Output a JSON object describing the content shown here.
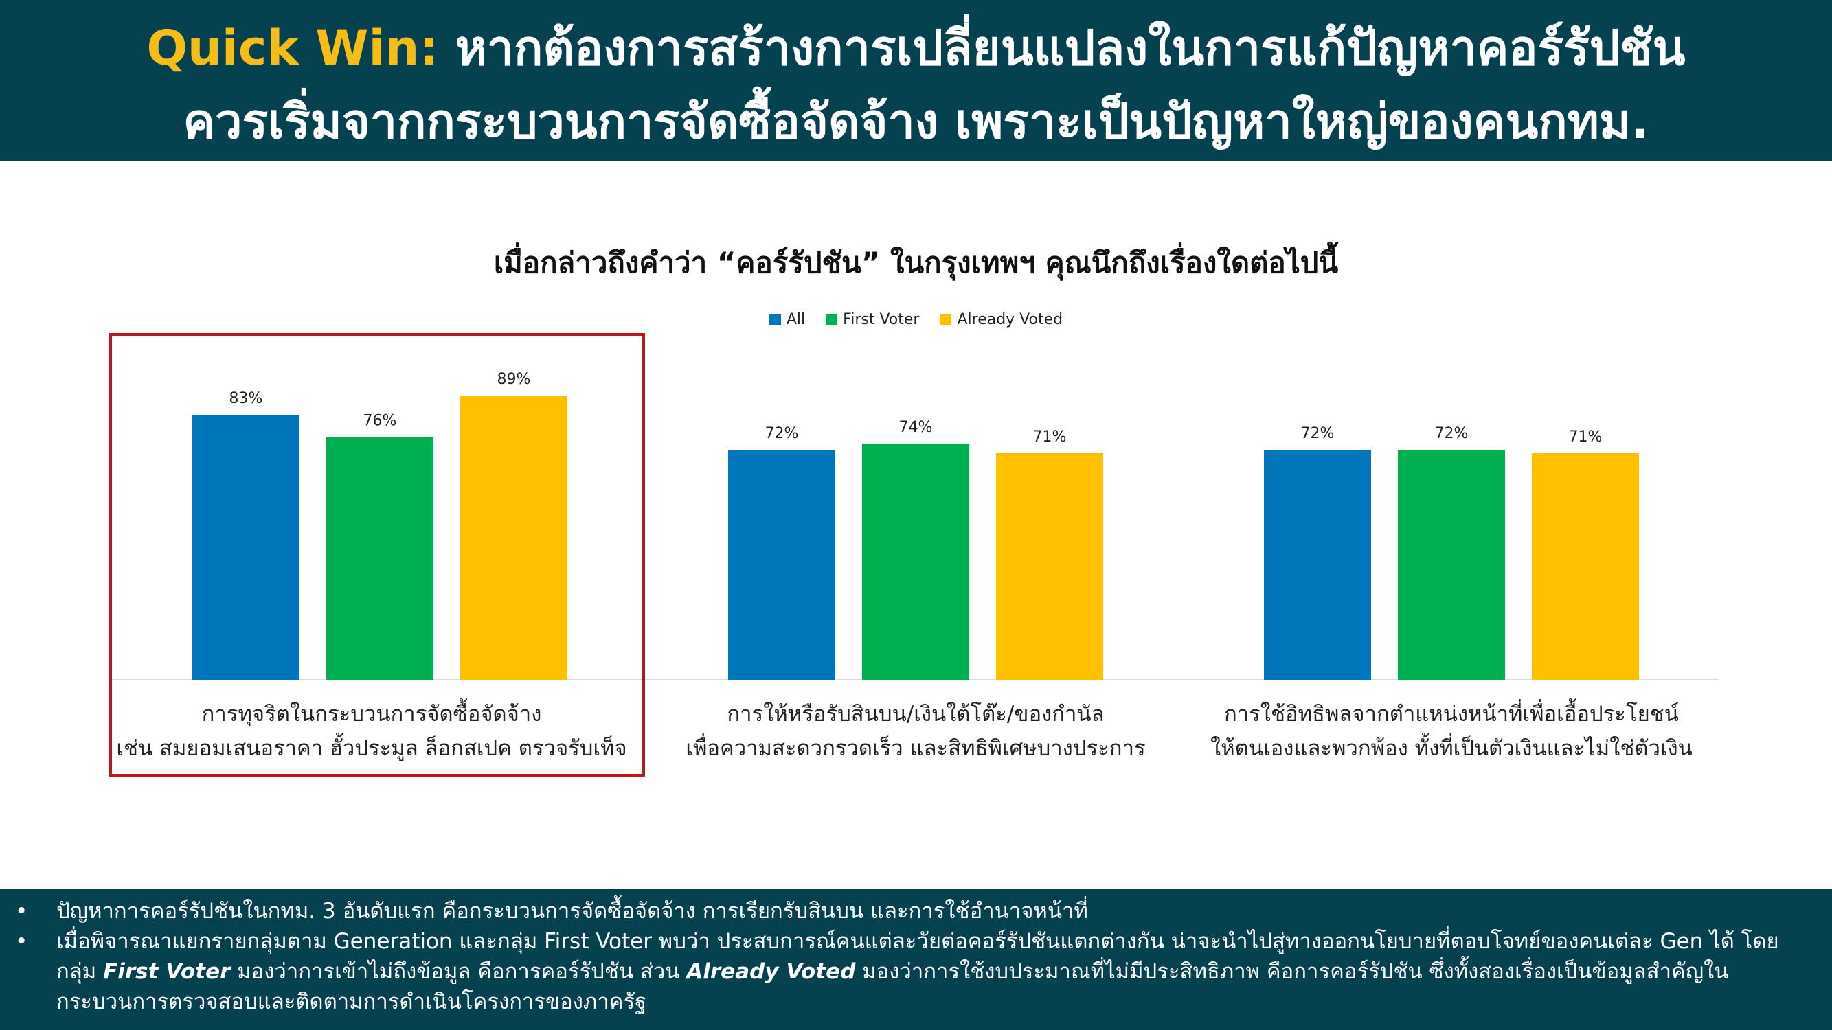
{
  "header": {
    "quickwin_label": "Quick Win:",
    "line1": "หากต้องการสร้างการเปลี่ยนแปลงในการแก้ปัญหาคอร์รัปชัน",
    "line2": "ควรเริ่มจากกระบวนการจัดซื้อจัดจ้าง เพราะเป็นปัญหาใหญ่ของคนกทม."
  },
  "chart_data": {
    "type": "bar",
    "title": "เมื่อกล่าวถึงคำว่า “คอร์รัปชัน” ในกรุงเทพฯ คุณนึกถึงเรื่องใดต่อไปนี้",
    "categories": [
      [
        "การทุจริตในกระบวนการจัดซื้อจัดจ้าง",
        "เช่น สมยอมเสนอราคา ฮั้วประมูล ล็อกสเปค ตรวจรับเท็จ"
      ],
      [
        "การให้หรือรับสินบน/เงินใต้โต๊ะ/ของกำนัล",
        "เพื่อความสะดวกรวดเร็ว และสิทธิพิเศษบางประการ"
      ],
      [
        "การใช้อิทธิพลจากตำแหน่งหน้าที่เพื่อเอื้อประโยชน์",
        "ให้ตนเองและพวกพ้อง ทั้งที่เป็นตัวเงินและไม่ใช่ตัวเงิน"
      ]
    ],
    "series": [
      {
        "name": "All",
        "color": "#0077bc",
        "values": [
          83,
          72,
          72
        ],
        "labels": [
          "83%",
          "72%",
          "72%"
        ]
      },
      {
        "name": "First Voter",
        "color": "#00b050",
        "values": [
          76,
          74,
          72
        ],
        "labels": [
          "76%",
          "74%",
          "72%"
        ]
      },
      {
        "name": "Already Voted",
        "color": "#ffc000",
        "values": [
          89,
          71,
          71
        ],
        "labels": [
          "89%",
          "71%",
          "71%"
        ]
      }
    ],
    "ylim": [
      0,
      100
    ],
    "grid": false,
    "legend": "top-center",
    "highlighted_category": 0
  },
  "footer": {
    "bullet1": "ปัญหาการคอร์รัปชันในกทม. 3 อันดับแรก คือกระบวนการจัดซื้อจัดจ้าง การเรียกรับสินบน และการใช้อำนาจหน้าที่",
    "bullet2_a": "เมื่อพิจารณาแยกรายกลุ่มตาม Generation และกลุ่ม First Voter พบว่า ประสบการณ์คนแต่ละวัยต่อคอร์รัปชันแตกต่างกัน น่าจะนำไปสู่ทางออกนโยบายที่ตอบโจทย์ของคนเต่ละ Gen ได้  โดยกลุ่ม ",
    "bullet2_fv": "First Voter",
    "bullet2_b": " มองว่าการเข้าไม่ถึงข้อมูล คือการคอร์รัปชัน ส่วน ",
    "bullet2_av": "Already Voted",
    "bullet2_c": " มองว่าการใช้งบประมาณที่ไม่มีประสิทธิภาพ คือการคอร์รัปชัน  ซึ่งทั้งสองเรื่องเป็นข้อมูลสำคัญในกระบวนการตรวจสอบและติดตามการดำเนินโครงการของภาครัฐ"
  }
}
